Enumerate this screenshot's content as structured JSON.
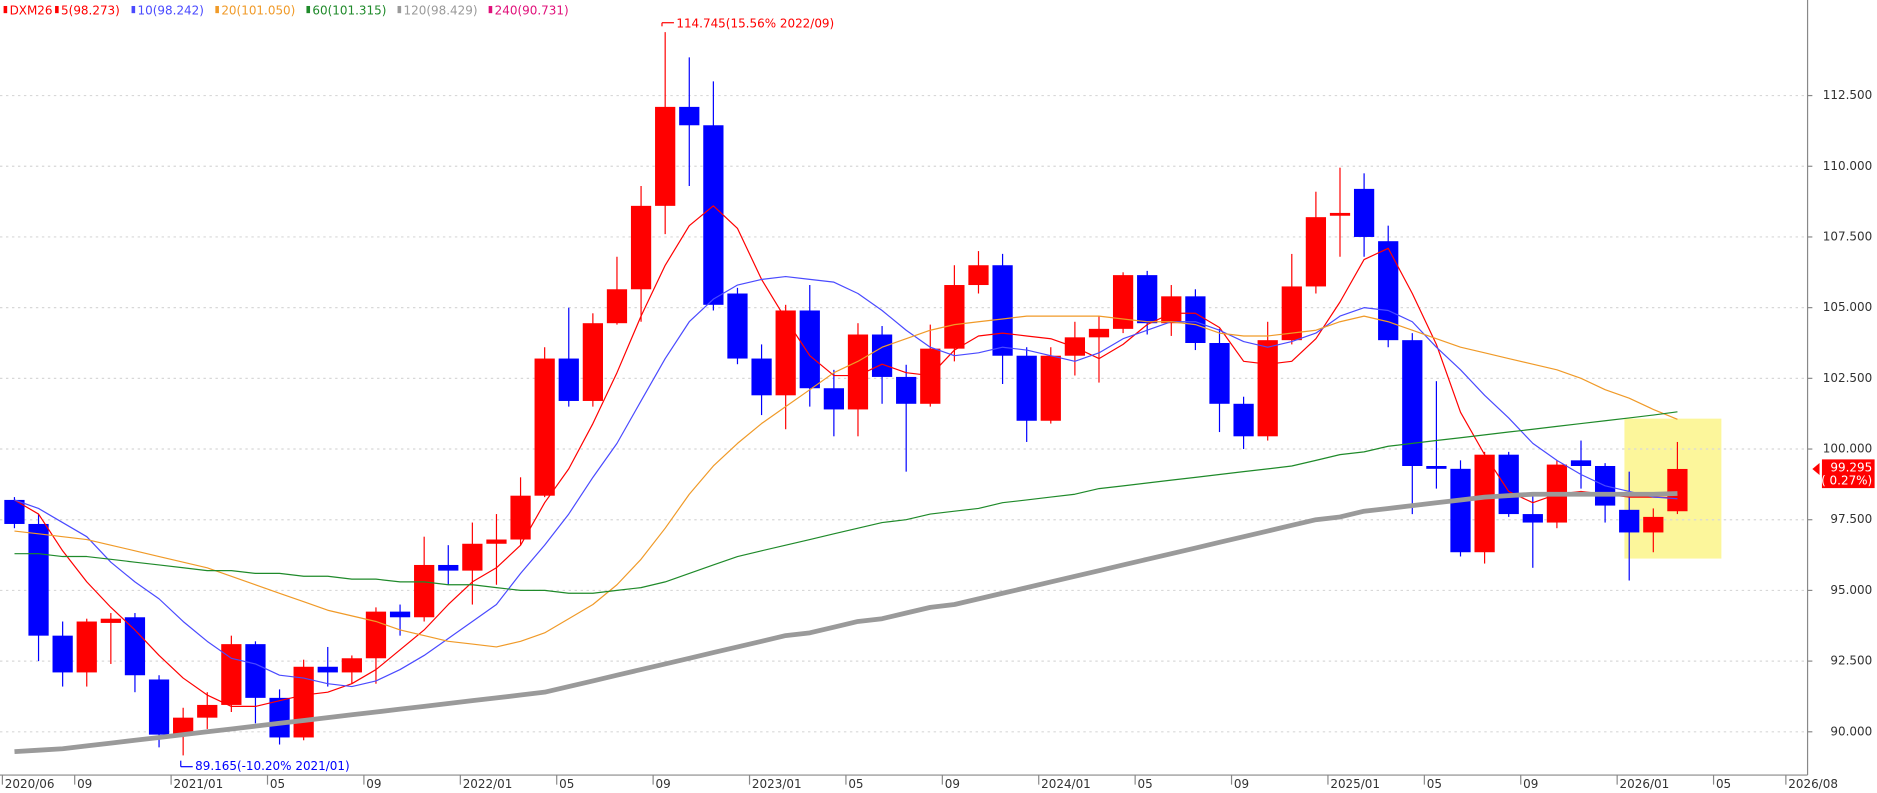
{
  "chart_data": {
    "type": "candlestick",
    "symbol": "DXM26",
    "up_color": "#ff0000",
    "down_color": "#0000ff",
    "categories": [
      "2020/06",
      null,
      null,
      "09",
      null,
      null,
      null,
      "2021/01",
      null,
      null,
      null,
      "05",
      null,
      null,
      null,
      "09",
      null,
      null,
      null,
      "2022/01",
      null,
      null,
      null,
      "05",
      null,
      null,
      null,
      "09",
      null,
      null,
      null,
      "2023/01",
      null,
      null,
      null,
      "05",
      null,
      null,
      null,
      "09",
      null,
      null,
      null,
      "2024/01",
      null,
      null,
      null,
      "05",
      null,
      null,
      null,
      "09",
      null,
      null,
      null,
      "2025/01",
      null,
      null,
      null,
      "05",
      null,
      null,
      null,
      "09",
      null,
      null,
      null,
      "2026/01",
      null,
      null,
      null,
      "05",
      null,
      null,
      "2026/08"
    ],
    "open": [
      98.2,
      97.35,
      93.4,
      92.1,
      93.85,
      94.05,
      91.85,
      89.9,
      90.5,
      90.95,
      93.1,
      91.2,
      89.8,
      92.3,
      92.1,
      92.6,
      94.25,
      94.05,
      95.9,
      95.7,
      96.65,
      96.8,
      98.35,
      103.2,
      101.7,
      104.45,
      105.65,
      108.6,
      112.1,
      111.45,
      105.5,
      103.2,
      101.9,
      104.9,
      102.15,
      101.4,
      104.05,
      102.55,
      101.6,
      103.55,
      105.8,
      106.5,
      103.3,
      101.0,
      103.3,
      103.95,
      104.25,
      106.15,
      104.45,
      105.4,
      103.75,
      101.6,
      100.45,
      103.85,
      105.75,
      108.25,
      109.2,
      107.35,
      103.85,
      99.4,
      99.3,
      96.35,
      99.8,
      97.7,
      97.4,
      99.6,
      99.4,
      97.85,
      97.05,
      97.8,
      null,
      null,
      null,
      null,
      null
    ],
    "high": [
      98.3,
      97.7,
      93.9,
      94.0,
      94.2,
      94.2,
      92.0,
      90.85,
      91.4,
      93.4,
      93.2,
      91.5,
      92.55,
      93.0,
      92.7,
      94.4,
      94.5,
      96.9,
      96.6,
      97.4,
      97.7,
      99.0,
      103.6,
      105.0,
      104.8,
      106.8,
      109.3,
      114.745,
      113.85,
      113.0,
      105.7,
      103.7,
      105.1,
      105.8,
      102.8,
      104.45,
      104.35,
      102.98,
      104.4,
      106.5,
      107.0,
      106.9,
      103.6,
      103.6,
      104.5,
      104.7,
      106.25,
      106.3,
      105.8,
      105.65,
      104.25,
      101.85,
      104.5,
      106.9,
      109.1,
      109.95,
      109.75,
      107.9,
      104.1,
      102.4,
      99.6,
      99.9,
      99.9,
      98.4,
      99.6,
      100.3,
      99.5,
      99.2,
      97.9,
      100.25,
      null,
      null,
      null,
      null,
      null
    ],
    "low": [
      97.2,
      92.5,
      91.6,
      91.6,
      92.4,
      91.4,
      89.45,
      89.165,
      90.1,
      90.7,
      90.3,
      89.55,
      89.7,
      91.6,
      91.7,
      91.7,
      93.4,
      93.9,
      95.2,
      94.5,
      95.2,
      96.6,
      98.3,
      101.5,
      101.5,
      104.4,
      104.5,
      107.6,
      109.3,
      104.9,
      103.0,
      101.2,
      100.7,
      101.5,
      100.45,
      100.45,
      101.6,
      99.2,
      101.5,
      103.1,
      105.5,
      102.3,
      100.25,
      100.9,
      102.6,
      102.35,
      104.1,
      104.05,
      104.0,
      103.5,
      100.6,
      100.0,
      100.3,
      103.7,
      105.5,
      106.8,
      106.8,
      103.6,
      97.7,
      98.6,
      96.2,
      95.95,
      97.6,
      95.8,
      97.2,
      98.6,
      97.4,
      95.35,
      96.35,
      97.7,
      null,
      null,
      null,
      null,
      null
    ],
    "close": [
      97.35,
      93.4,
      92.1,
      93.9,
      94.0,
      92.0,
      89.9,
      90.5,
      90.95,
      93.1,
      91.2,
      89.8,
      92.3,
      92.1,
      92.6,
      94.25,
      94.05,
      95.9,
      95.7,
      96.65,
      96.8,
      98.35,
      103.2,
      101.7,
      104.45,
      105.65,
      108.6,
      112.1,
      111.45,
      105.1,
      103.2,
      101.9,
      104.9,
      102.15,
      101.4,
      104.05,
      102.55,
      101.6,
      103.55,
      105.8,
      106.5,
      103.3,
      101.0,
      103.3,
      103.95,
      104.25,
      106.15,
      104.45,
      105.4,
      103.75,
      101.6,
      100.45,
      103.85,
      105.75,
      108.2,
      108.35,
      107.5,
      103.85,
      99.4,
      99.3,
      96.35,
      99.8,
      97.7,
      97.4,
      99.45,
      99.4,
      98.0,
      97.05,
      97.6,
      99.295,
      null,
      null,
      null,
      null,
      null
    ],
    "lines": [
      {
        "name": "5(98.273)",
        "color": "#ff0000",
        "width": 1,
        "values": [
          98.2,
          97.7,
          96.4,
          95.3,
          94.4,
          93.6,
          92.7,
          91.9,
          91.3,
          90.9,
          90.9,
          91.1,
          91.3,
          91.4,
          91.7,
          92.2,
          92.9,
          93.6,
          94.5,
          95.3,
          95.8,
          96.6,
          98.1,
          99.3,
          100.9,
          102.7,
          104.7,
          106.5,
          107.9,
          108.6,
          107.8,
          106.0,
          104.6,
          103.3,
          102.6,
          102.6,
          103.0,
          102.7,
          102.6,
          103.5,
          104.0,
          104.1,
          104.0,
          103.9,
          103.6,
          103.2,
          103.7,
          104.4,
          104.8,
          104.8,
          104.3,
          103.1,
          103.0,
          103.1,
          103.9,
          105.2,
          106.7,
          107.1,
          105.5,
          103.7,
          101.3,
          99.8,
          98.5,
          98.1,
          98.4,
          98.5,
          98.4,
          98.3,
          98.3,
          98.273,
          null,
          null,
          null,
          null,
          null
        ]
      },
      {
        "name": "10(98.242)",
        "color": "#4a4aff",
        "width": 1,
        "values": [
          98.2,
          97.9,
          97.4,
          96.9,
          96.0,
          95.3,
          94.7,
          93.9,
          93.2,
          92.6,
          92.4,
          92.0,
          91.9,
          91.7,
          91.6,
          91.8,
          92.2,
          92.7,
          93.3,
          93.9,
          94.5,
          95.6,
          96.6,
          97.7,
          99.0,
          100.2,
          101.7,
          103.2,
          104.5,
          105.3,
          105.8,
          106.0,
          106.1,
          106.0,
          105.9,
          105.5,
          104.9,
          104.2,
          103.6,
          103.3,
          103.4,
          103.6,
          103.5,
          103.3,
          103.1,
          103.4,
          103.9,
          104.2,
          104.5,
          104.5,
          104.2,
          103.8,
          103.6,
          103.8,
          104.1,
          104.7,
          105.0,
          104.9,
          104.5,
          103.6,
          102.8,
          101.9,
          101.1,
          100.2,
          99.6,
          99.1,
          98.7,
          98.5,
          98.3,
          98.242,
          null,
          null,
          null,
          null,
          null
        ]
      },
      {
        "name": "20(101.050)",
        "color": "#f09a28",
        "width": 1,
        "values": [
          97.1,
          97.0,
          96.9,
          96.8,
          96.6,
          96.4,
          96.2,
          96.0,
          95.8,
          95.5,
          95.2,
          94.9,
          94.6,
          94.3,
          94.1,
          93.9,
          93.6,
          93.4,
          93.2,
          93.1,
          93.0,
          93.2,
          93.5,
          94.0,
          94.5,
          95.2,
          96.1,
          97.2,
          98.4,
          99.4,
          100.2,
          100.9,
          101.5,
          102.1,
          102.7,
          103.1,
          103.6,
          103.9,
          104.2,
          104.4,
          104.5,
          104.6,
          104.7,
          104.7,
          104.7,
          104.7,
          104.6,
          104.5,
          104.5,
          104.4,
          104.1,
          104.0,
          104.0,
          104.1,
          104.2,
          104.5,
          104.7,
          104.5,
          104.2,
          103.9,
          103.6,
          103.4,
          103.2,
          103.0,
          102.8,
          102.5,
          102.1,
          101.8,
          101.4,
          101.05,
          null,
          null,
          null,
          null,
          null
        ]
      },
      {
        "name": "60(101.315)",
        "color": "#1f8a2a",
        "width": 1,
        "values": [
          96.3,
          96.3,
          96.2,
          96.2,
          96.1,
          96.0,
          95.9,
          95.8,
          95.7,
          95.7,
          95.6,
          95.6,
          95.5,
          95.5,
          95.4,
          95.4,
          95.3,
          95.3,
          95.2,
          95.2,
          95.1,
          95.0,
          95.0,
          94.9,
          94.9,
          95.0,
          95.1,
          95.3,
          95.6,
          95.9,
          96.2,
          96.4,
          96.6,
          96.8,
          97.0,
          97.2,
          97.4,
          97.5,
          97.7,
          97.8,
          97.9,
          98.1,
          98.2,
          98.3,
          98.4,
          98.6,
          98.7,
          98.8,
          98.9,
          99.0,
          99.1,
          99.2,
          99.3,
          99.4,
          99.6,
          99.8,
          99.9,
          100.1,
          100.2,
          100.3,
          100.4,
          100.5,
          100.6,
          100.7,
          100.8,
          100.9,
          101.0,
          101.1,
          101.2,
          101.315,
          null,
          null,
          null,
          null,
          null
        ]
      },
      {
        "name": "120(98.429)",
        "color": "#9a9a9a",
        "width": 4,
        "values": [
          89.3,
          89.35,
          89.4,
          89.5,
          89.6,
          89.7,
          89.8,
          89.9,
          90.0,
          90.1,
          90.2,
          90.3,
          90.4,
          90.5,
          90.6,
          90.7,
          90.8,
          90.9,
          91.0,
          91.1,
          91.2,
          91.3,
          91.4,
          91.6,
          91.8,
          92.0,
          92.2,
          92.4,
          92.6,
          92.8,
          93.0,
          93.2,
          93.4,
          93.5,
          93.7,
          93.9,
          94.0,
          94.2,
          94.4,
          94.5,
          94.7,
          94.9,
          95.1,
          95.3,
          95.5,
          95.7,
          95.9,
          96.1,
          96.3,
          96.5,
          96.7,
          96.9,
          97.1,
          97.3,
          97.5,
          97.6,
          97.8,
          97.9,
          98.0,
          98.1,
          98.2,
          98.3,
          98.35,
          98.4,
          98.4,
          98.4,
          98.4,
          98.4,
          98.4,
          98.429,
          null,
          null,
          null,
          null,
          null
        ]
      },
      {
        "name": "240(90.731)",
        "color": "#e0107a",
        "width": 1,
        "values": [
          null,
          null,
          null,
          null,
          null,
          null,
          null,
          null,
          null,
          null,
          null,
          null,
          null,
          null,
          null,
          null,
          null,
          null,
          null,
          null,
          null,
          null,
          null,
          null,
          null,
          null,
          null,
          null,
          null,
          null,
          null,
          null,
          null,
          null,
          null,
          null,
          null,
          null,
          null,
          null,
          null,
          null,
          null,
          null,
          null,
          null,
          null,
          null,
          null,
          null,
          null,
          null,
          null,
          null,
          null,
          null,
          null,
          null,
          null,
          null,
          null,
          null,
          null,
          null,
          null,
          null,
          null,
          null,
          null,
          null,
          null,
          null,
          null,
          null,
          null
        ]
      }
    ],
    "ylim": [
      88.47,
      115.88
    ],
    "yticks": [
      {
        "value": 90,
        "label": "90.000"
      },
      {
        "value": 92.5,
        "label": "92.500"
      },
      {
        "value": 95,
        "label": "95.000"
      },
      {
        "value": 97.5,
        "label": "97.500"
      },
      {
        "value": 100,
        "label": "100.000"
      },
      {
        "value": 102.5,
        "label": "102.500"
      },
      {
        "value": 105,
        "label": "105.000"
      },
      {
        "value": 107.5,
        "label": "107.500"
      },
      {
        "value": 110,
        "label": "110.000"
      },
      {
        "value": 112.5,
        "label": "112.500"
      }
    ],
    "grid": true,
    "max_annotation": "114.745(15.56% 2022/09)",
    "min_annotation": "89.165(-10.20% 2021/01)",
    "last_price": 99.295,
    "last_change": "( 0.27%)"
  }
}
